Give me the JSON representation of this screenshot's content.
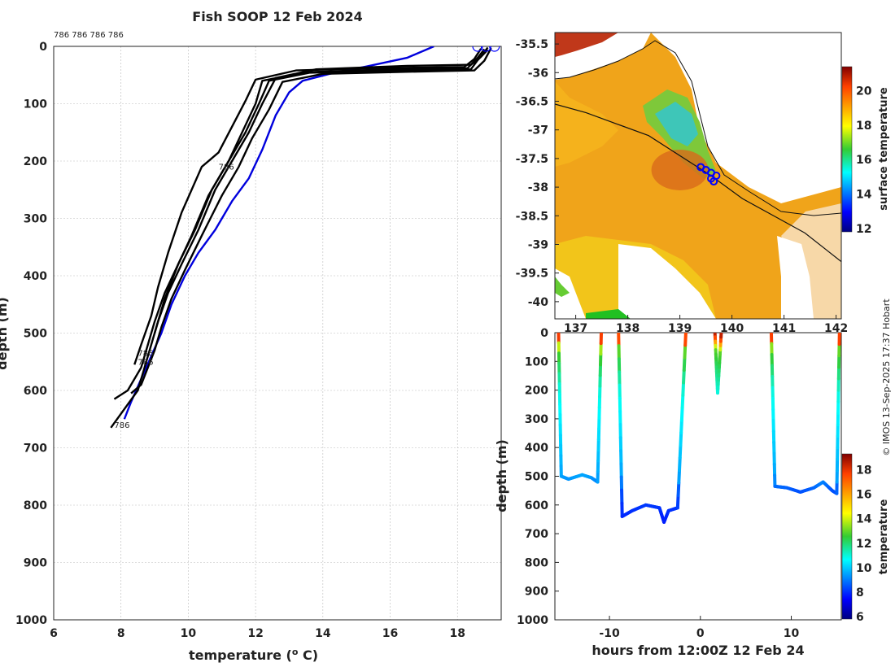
{
  "credit": "© IMOS 13-Sep-2025 17:37 Hobart",
  "chart_data": [
    {
      "type": "line",
      "panel": "temperature-profile",
      "title": "Fish SOOP 12 Feb 2024",
      "xlabel": "temperature (",
      "xlabel_sup": "o",
      "xlabel_tail": " C)",
      "ylabel": "depth (m)",
      "xlim": [
        6,
        19.3
      ],
      "ylim": [
        1000,
        0
      ],
      "xticks": [
        6,
        8,
        10,
        12,
        14,
        16,
        18
      ],
      "yticks": [
        0,
        100,
        200,
        300,
        400,
        500,
        600,
        700,
        800,
        900,
        1000
      ],
      "grid": true,
      "top_label": "786 786 786 786",
      "surface_markers": [
        18.6,
        18.85,
        19.1
      ],
      "series": [
        {
          "name": "profile-blue",
          "color": "#0000dd",
          "temps": [
            17.3,
            16.5,
            15.3,
            14.2,
            13.4,
            13.0,
            12.6,
            12.2,
            11.8,
            11.3,
            10.8,
            10.3,
            9.9,
            9.5,
            9.2,
            8.9,
            8.6,
            8.3,
            8.1
          ],
          "depths": [
            0,
            20,
            35,
            48,
            60,
            80,
            120,
            180,
            230,
            270,
            320,
            360,
            400,
            450,
            500,
            540,
            580,
            620,
            650
          ]
        },
        {
          "name": "profile-1",
          "color": "#000000",
          "temps": [
            18.8,
            18.6,
            18.3,
            16.0,
            13.5,
            12.2,
            12.0,
            11.6,
            11.2,
            10.6,
            10.1,
            9.7,
            9.3,
            9.0,
            8.8,
            8.6,
            8.2,
            7.8
          ],
          "depths": [
            5,
            20,
            38,
            40,
            45,
            60,
            100,
            150,
            200,
            260,
            330,
            380,
            430,
            480,
            520,
            560,
            600,
            615
          ]
        },
        {
          "name": "profile-2",
          "color": "#000000",
          "temps": [
            18.9,
            18.7,
            18.4,
            16.5,
            13.8,
            12.6,
            12.2,
            11.8,
            11.3,
            10.8,
            10.3,
            9.8,
            9.4,
            9.1,
            8.9,
            8.7,
            8.5,
            7.7
          ],
          "depths": [
            2,
            18,
            32,
            34,
            40,
            55,
            100,
            150,
            200,
            250,
            320,
            380,
            430,
            480,
            520,
            560,
            600,
            665
          ]
        },
        {
          "name": "profile-3",
          "color": "#000000",
          "temps": [
            19.0,
            18.8,
            18.5,
            16.8,
            14.0,
            12.8,
            12.4,
            11.9,
            11.5,
            11.0,
            10.4,
            9.9,
            9.5,
            9.2,
            9.0,
            8.8,
            8.6,
            8.3
          ],
          "depths": [
            3,
            25,
            42,
            44,
            48,
            62,
            110,
            160,
            210,
            260,
            330,
            390,
            440,
            490,
            530,
            560,
            590,
            605
          ]
        },
        {
          "name": "profile-4",
          "color": "#000000",
          "temps": [
            18.7,
            18.5,
            18.2,
            15.5,
            13.2,
            12.0,
            11.7,
            11.3,
            10.9,
            10.4,
            9.8,
            9.4,
            9.1,
            8.9,
            8.6,
            8.4
          ],
          "depths": [
            4,
            22,
            36,
            38,
            42,
            58,
            95,
            140,
            185,
            210,
            290,
            360,
            420,
            470,
            520,
            555
          ]
        },
        {
          "name": "profile-5",
          "color": "#000000",
          "temps": [
            18.9,
            18.6,
            18.4,
            16.2,
            13.6,
            12.4,
            12.1,
            11.7,
            11.2,
            10.7,
            10.2,
            9.7,
            9.3,
            9.0
          ],
          "depths": [
            6,
            24,
            40,
            42,
            46,
            60,
            100,
            150,
            200,
            250,
            320,
            380,
            440,
            500
          ]
        }
      ],
      "annotations": [
        {
          "text": "786",
          "x": 10.9,
          "y": 215
        },
        {
          "text": "786",
          "x": 8.5,
          "y": 555
        },
        {
          "text": "786",
          "x": 8.5,
          "y": 540
        },
        {
          "text": "786",
          "x": 7.8,
          "y": 665
        }
      ]
    },
    {
      "type": "heatmap",
      "panel": "sst-map",
      "colorbar_label": "surface temperature",
      "colorbar_ticks": [
        12,
        14,
        16,
        18,
        20
      ],
      "colorbar_range": [
        11.8,
        21.4
      ],
      "xlim": [
        136.6,
        142.1
      ],
      "ylim": [
        -40.3,
        -35.3
      ],
      "yticks": [
        -35.5,
        -36,
        -36.5,
        -37,
        -37.5,
        -38,
        -38.5,
        -39,
        -39.5,
        -40
      ],
      "ytick_labels": [
        "-35.5",
        "-36",
        "-36.5",
        "-37",
        "-37.5",
        "-38",
        "-38.5",
        "-39",
        "-39.5",
        "-40"
      ],
      "xticks": [
        137,
        138,
        139,
        140,
        141,
        142
      ],
      "xtick_labels": [
        "137",
        "138",
        "139",
        "140",
        "141",
        "142"
      ],
      "track_lon": [
        139.4,
        139.5,
        139.6,
        139.7,
        139.6,
        139.65
      ],
      "track_lat": [
        -37.65,
        -37.7,
        -37.75,
        -37.8,
        -37.85,
        -37.9
      ],
      "warm_core_lon": 139.0,
      "warm_core_lat": -37.7,
      "coast_lon": [
        136.6,
        137.2,
        137.8,
        138.4,
        139.0,
        139.6,
        140.2,
        140.8,
        141.4,
        142.1
      ],
      "coast_lat": [
        -36.55,
        -36.7,
        -36.9,
        -37.1,
        -37.45,
        -37.8,
        -38.2,
        -38.5,
        -38.8,
        -39.3
      ]
    },
    {
      "type": "line",
      "panel": "depth-time",
      "xlabel": "hours from 12:00Z 12 Feb 24",
      "ylabel": "depth (m)",
      "colorbar_label": "temperature",
      "colorbar_ticks": [
        6,
        8,
        10,
        12,
        14,
        16,
        18
      ],
      "colorbar_range": [
        5.8,
        19.3
      ],
      "xlim": [
        -16,
        15.5
      ],
      "ylim": [
        1000,
        0
      ],
      "xticks": [
        -10,
        0,
        10
      ],
      "yticks": [
        0,
        100,
        200,
        300,
        400,
        500,
        600,
        700,
        800,
        900,
        1000
      ],
      "dives": [
        {
          "t": [
            -15.6,
            -15.3,
            -14.5,
            -13.0,
            -12.0,
            -11.3,
            -10.9
          ],
          "d": [
            0,
            500,
            510,
            495,
            505,
            520,
            0
          ]
        },
        {
          "t": [
            -9.0,
            -8.6,
            -7.5,
            -6.0,
            -4.5,
            -4.0,
            -3.5,
            -2.5,
            -1.6
          ],
          "d": [
            0,
            640,
            620,
            600,
            610,
            660,
            620,
            610,
            0
          ]
        },
        {
          "t": [
            1.6,
            1.9,
            2.3
          ],
          "d": [
            0,
            210,
            0
          ]
        },
        {
          "t": [
            7.8,
            8.2,
            9.5,
            11.0,
            12.5,
            13.5,
            14.5,
            15.0,
            15.3
          ],
          "d": [
            0,
            535,
            540,
            555,
            540,
            520,
            550,
            560,
            0
          ]
        }
      ],
      "depth_temps": [
        [
          0,
          19
        ],
        [
          30,
          17
        ],
        [
          60,
          13
        ],
        [
          200,
          11
        ],
        [
          500,
          9.5
        ],
        [
          550,
          8.5
        ],
        [
          650,
          7.8
        ]
      ]
    }
  ]
}
